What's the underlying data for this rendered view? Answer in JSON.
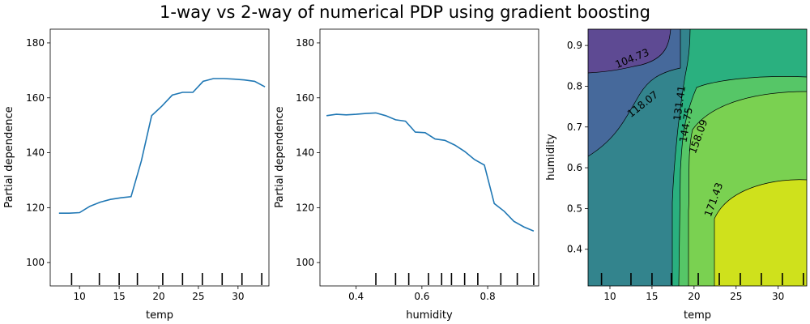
{
  "figure": {
    "title": "1-way vs 2-way of numerical PDP using gradient boosting",
    "colors": {
      "line": "#1f77b4",
      "tick_marks": "#000000",
      "viridis_low": "#440154",
      "viridis_high": "#fde725",
      "contour_lines": "#000000"
    }
  },
  "chart_data": [
    {
      "type": "line",
      "xlabel": "temp",
      "ylabel": "Partial dependence",
      "xlim": [
        6.3,
        33.9
      ],
      "ylim": [
        91.5,
        185
      ],
      "xticks": [
        10,
        15,
        20,
        25,
        30
      ],
      "yticks": [
        100,
        120,
        140,
        160,
        180
      ],
      "x": [
        7.4,
        8.7,
        10.0,
        11.3,
        12.6,
        13.9,
        15.2,
        16.5,
        17.8,
        19.1,
        20.4,
        21.7,
        23.0,
        24.3,
        25.6,
        26.9,
        28.2,
        29.5,
        30.8,
        32.1,
        33.4
      ],
      "values": [
        118,
        118,
        118.2,
        120.5,
        122,
        123,
        123.6,
        124,
        137,
        153.5,
        157,
        161,
        162,
        162,
        166,
        167,
        167,
        166.8,
        166.5,
        166,
        164
      ],
      "rug": [
        9.0,
        12.5,
        15.0,
        17.3,
        20.5,
        23.0,
        25.5,
        28.0,
        30.5,
        33.0
      ],
      "grid": false
    },
    {
      "type": "line",
      "xlabel": "humidity",
      "ylabel": "Partial dependence",
      "xlim": [
        0.29,
        0.955
      ],
      "ylim": [
        91.5,
        185
      ],
      "xticks": [
        0.4,
        0.6,
        0.8
      ],
      "yticks": [
        100,
        120,
        140,
        160,
        180
      ],
      "x": [
        0.31,
        0.34,
        0.37,
        0.4,
        0.43,
        0.46,
        0.49,
        0.52,
        0.55,
        0.58,
        0.61,
        0.64,
        0.67,
        0.7,
        0.73,
        0.76,
        0.79,
        0.82,
        0.85,
        0.88,
        0.91,
        0.94
      ],
      "values": [
        153.5,
        154,
        153.8,
        154,
        154.3,
        154.5,
        153.5,
        152,
        151.5,
        147.5,
        147.3,
        145,
        144.5,
        142.8,
        140.5,
        137.5,
        135.5,
        121.5,
        118.7,
        115,
        113,
        111.5
      ],
      "rug": [
        0.46,
        0.52,
        0.56,
        0.62,
        0.66,
        0.69,
        0.73,
        0.77,
        0.84,
        0.89,
        0.94
      ],
      "grid": false
    },
    {
      "type": "heatmap",
      "subtype": "filled contour",
      "xlabel": "temp",
      "ylabel": "humidity",
      "xlim": [
        7.4,
        33.4
      ],
      "ylim": [
        0.31,
        0.94
      ],
      "xticks": [
        10,
        15,
        20,
        25,
        30
      ],
      "yticks": [
        0.4,
        0.5,
        0.6,
        0.7,
        0.8,
        0.9
      ],
      "colormap": "viridis",
      "levels": [
        104.73,
        118.07,
        131.41,
        144.75,
        158.09,
        171.43
      ],
      "contour_labels": [
        "104.73",
        "118.07",
        "131.41",
        "144.75",
        "158.09",
        "171.43"
      ],
      "rug": [
        9.0,
        12.5,
        15.0,
        17.3,
        20.5,
        23.0,
        25.5,
        28.0,
        30.5,
        33.0
      ]
    }
  ]
}
